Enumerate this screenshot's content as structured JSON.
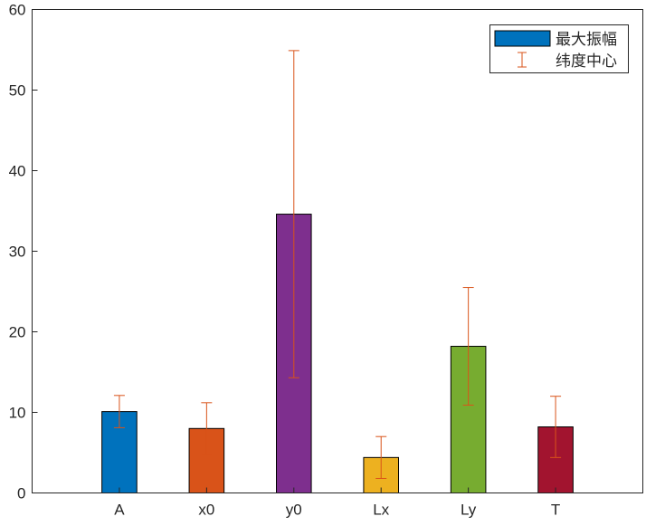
{
  "chart_data": {
    "type": "bar",
    "title": "",
    "xlabel": "",
    "ylabel": "",
    "categories": [
      "A",
      "x0",
      "y0",
      "Lx",
      "Ly",
      "T"
    ],
    "values": [
      10.1,
      8.0,
      34.6,
      4.4,
      18.2,
      8.2
    ],
    "errors": [
      2.0,
      3.2,
      20.3,
      2.6,
      7.3,
      3.8
    ],
    "bar_colors": [
      "#0072BD",
      "#D95319",
      "#7E2F8E",
      "#EDB120",
      "#77AC30",
      "#A2142F"
    ],
    "error_color": "#D95319",
    "ylim": [
      0,
      60
    ],
    "xlim": [
      0,
      7
    ],
    "yticks": [
      0,
      10,
      20,
      30,
      40,
      50,
      60
    ],
    "grid": false,
    "legend": {
      "placement": "top-right",
      "entries": [
        "最大振幅",
        "纬度中心"
      ]
    }
  }
}
